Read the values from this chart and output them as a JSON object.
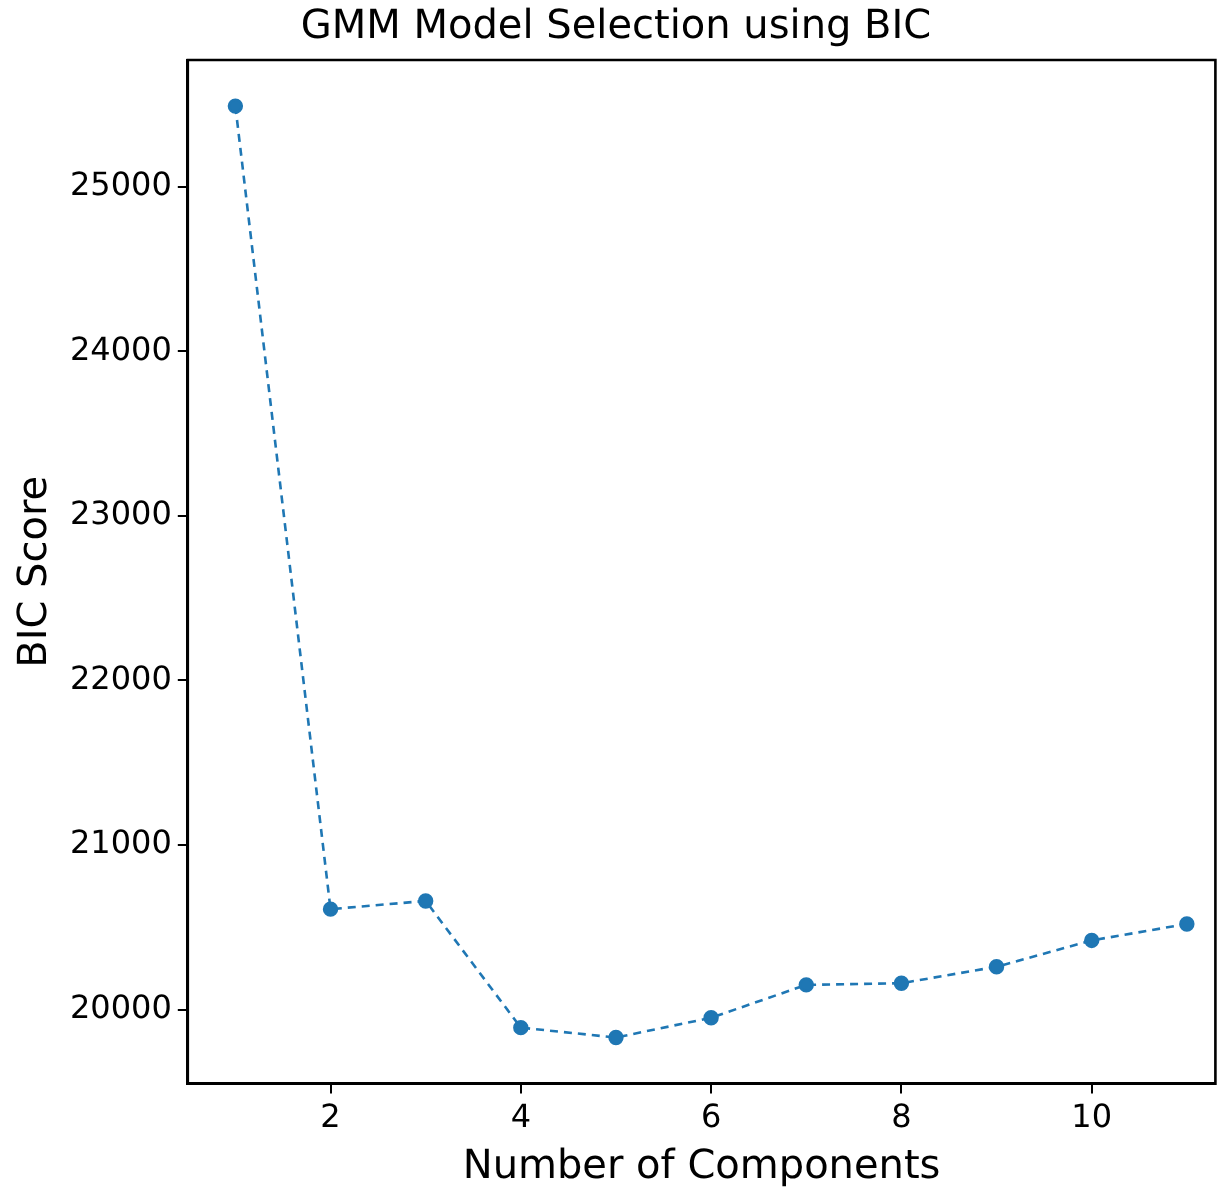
{
  "chart_data": {
    "type": "line",
    "title": "GMM Model Selection using BIC",
    "xlabel": "Number of Components",
    "ylabel": "BIC Score",
    "x": [
      1,
      2,
      3,
      4,
      5,
      6,
      7,
      8,
      9,
      10,
      11
    ],
    "series": [
      {
        "color": "#1f77b4",
        "values": [
          25490,
          20610,
          20660,
          19890,
          19830,
          19950,
          20150,
          20160,
          20260,
          20420,
          20520
        ]
      }
    ],
    "xlim": [
      0.5,
      11.3
    ],
    "xticks": [
      2,
      4,
      6,
      8,
      10
    ],
    "ylim": [
      19550,
      25770
    ],
    "yticks": [
      20000,
      21000,
      22000,
      23000,
      24000,
      25000
    ],
    "grid": false,
    "legend": false,
    "marker": "circle",
    "line_style": "dashed"
  }
}
